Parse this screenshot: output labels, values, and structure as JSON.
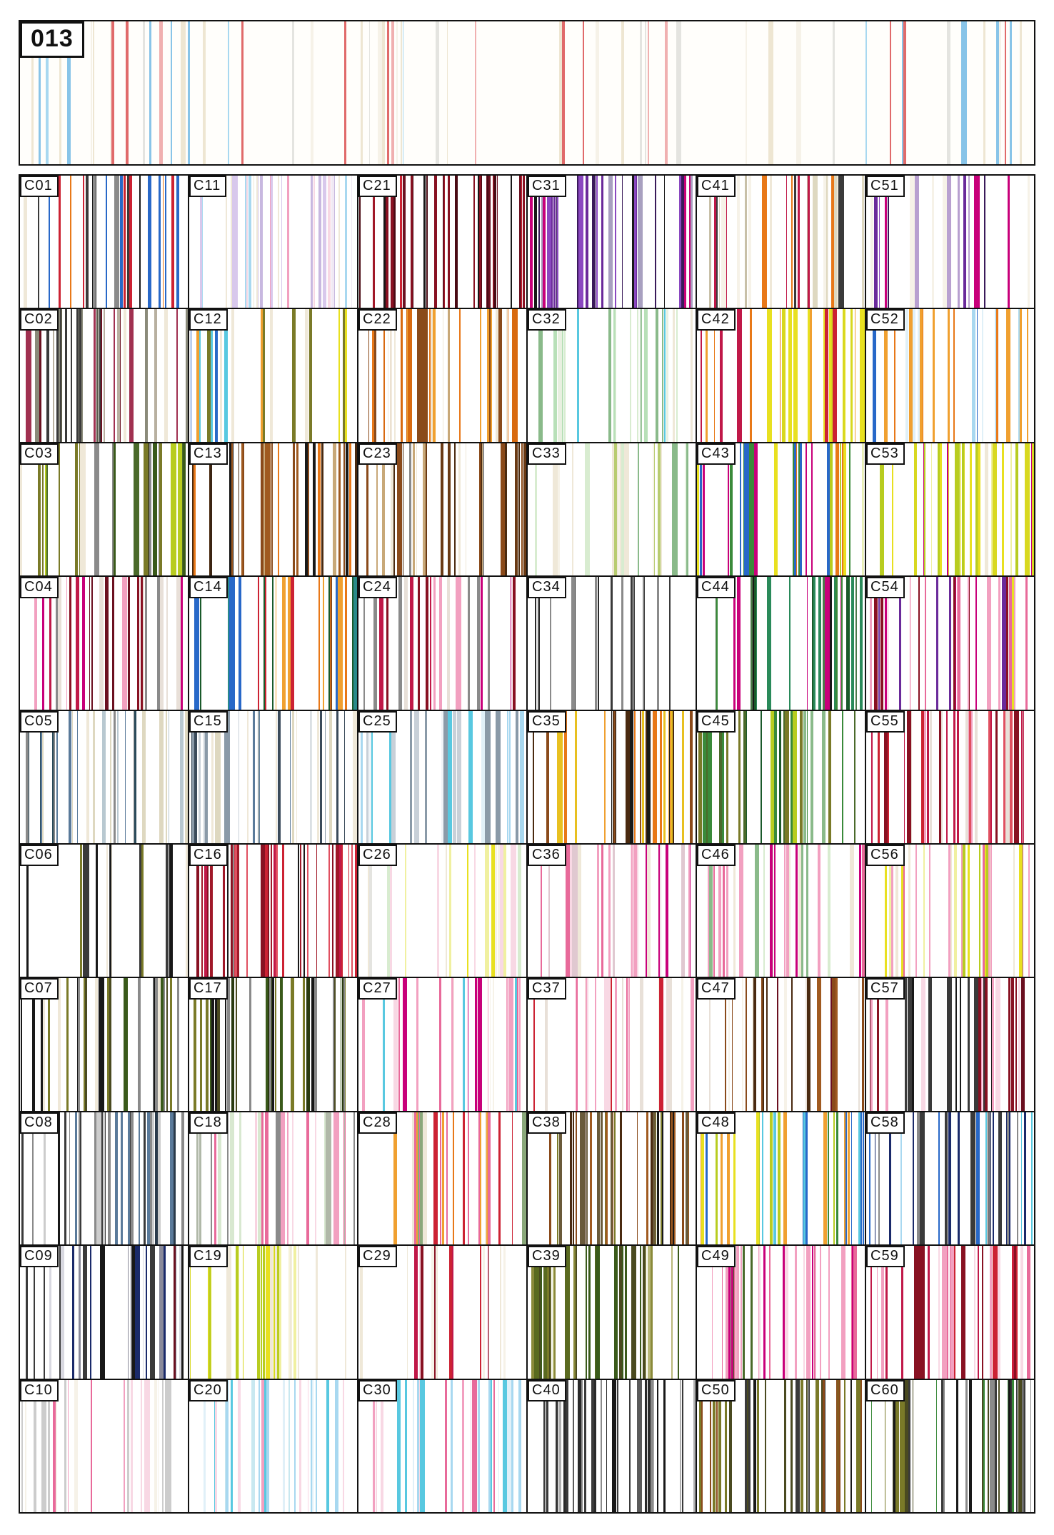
{
  "page": {
    "id_label": "013"
  },
  "header_strip": {
    "seed": 13,
    "count": 64,
    "palette": [
      "#f6f2e8",
      "#eee6d2",
      "#e4e4e0",
      "#f6f2e8",
      "#eee6d2",
      "#f6f2e8",
      "#e06a6a",
      "#f0b0b0",
      "#e06a6a",
      "#88c4e8",
      "#a8d8f0",
      "#e4e4e0",
      "#f0b0b0",
      "#eee6d2",
      "#88c4e8",
      "#e06a6a",
      "#f6f2e8",
      "#eee6d2"
    ]
  },
  "cells": [
    {
      "label": "C01",
      "seed": 201,
      "count": 26,
      "palette": [
        "#e87818",
        "#cc2233",
        "#2868c8",
        "#3a3a3a",
        "#8a8a8a",
        "#efe8d8",
        "#2868c8",
        "#cc2233",
        "#181818"
      ]
    },
    {
      "label": "C02",
      "seed": 202,
      "count": 30,
      "palette": [
        "#5a5a4a",
        "#8a8a7a",
        "#6b1020",
        "#3a3a3a",
        "#b8b0a0",
        "#efe8d8",
        "#a03050"
      ]
    },
    {
      "label": "C03",
      "seed": 203,
      "count": 32,
      "palette": [
        "#7a7a28",
        "#4a6a2a",
        "#b8cc20",
        "#181818",
        "#8a8a8a",
        "#efe8d8",
        "#3a5a1a"
      ]
    },
    {
      "label": "C04",
      "seed": 204,
      "count": 30,
      "palette": [
        "#c01848",
        "#881122",
        "#f2a0c0",
        "#8a8a8a",
        "#6b1020",
        "#e8e0d8",
        "#c8007a"
      ]
    },
    {
      "label": "C05",
      "seed": 205,
      "count": 30,
      "palette": [
        "#5a7a9a",
        "#2a4a5a",
        "#efe8d8",
        "#b8c8d0",
        "#8a8a8a",
        "#ded8c0"
      ]
    },
    {
      "label": "C06",
      "seed": 206,
      "count": 16,
      "palette": [
        "#181818",
        "#3a3a3a",
        "#7a7a28",
        "#efe8d8",
        "#8a8a8a",
        "#f6f2e8"
      ]
    },
    {
      "label": "C07",
      "seed": 207,
      "count": 28,
      "palette": [
        "#3a5a1a",
        "#181818",
        "#7a7a28",
        "#8a8a8a",
        "#efe8d8",
        "#4a4a20"
      ]
    },
    {
      "label": "C08",
      "seed": 208,
      "count": 36,
      "palette": [
        "#181818",
        "#3a3a3a",
        "#5a7a9a",
        "#8a8a8a",
        "#cccccc",
        "#2a3a4a"
      ]
    },
    {
      "label": "C09",
      "seed": 209,
      "count": 32,
      "palette": [
        "#1a2a6a",
        "#181818",
        "#3a3a3a",
        "#6b1020",
        "#8a8a9a",
        "#d8d8e0"
      ]
    },
    {
      "label": "C10",
      "seed": 210,
      "count": 24,
      "palette": [
        "#f2a0c0",
        "#f8d8e4",
        "#cccccc",
        "#c8007a",
        "#f6f2e8",
        "#e86a9a"
      ]
    },
    {
      "label": "C11",
      "seed": 211,
      "count": 30,
      "palette": [
        "#d8c8ec",
        "#f2a0c0",
        "#a8d8f0",
        "#f8d8e4",
        "#efe8d8",
        "#c8b8e0",
        "#f0e8f4"
      ]
    },
    {
      "label": "C12",
      "seed": 212,
      "count": 20,
      "palette": [
        "#e8e020",
        "#2868c8",
        "#58c8e0",
        "#efe8d8",
        "#7a7a28",
        "#f0a030",
        "#a8d8f0"
      ]
    },
    {
      "label": "C13",
      "seed": 213,
      "count": 32,
      "palette": [
        "#8a4a1a",
        "#e87818",
        "#4a2a10",
        "#c8a878",
        "#181818",
        "#a05a20"
      ]
    },
    {
      "label": "C14",
      "seed": 214,
      "count": 30,
      "palette": [
        "#2868c8",
        "#e87818",
        "#cc2233",
        "#2a8a8a",
        "#8a4a1a",
        "#f0a030",
        "#1a5a2a"
      ]
    },
    {
      "label": "C15",
      "seed": 215,
      "count": 30,
      "palette": [
        "#5a7a9a",
        "#8a9aa8",
        "#efe8d8",
        "#3a4a5a",
        "#c8d0d8",
        "#ded8c0"
      ]
    },
    {
      "label": "C16",
      "seed": 216,
      "count": 36,
      "palette": [
        "#cc2233",
        "#881122",
        "#c01848",
        "#181818",
        "#a01828",
        "#e05060"
      ]
    },
    {
      "label": "C17",
      "seed": 217,
      "count": 34,
      "palette": [
        "#3a5a1a",
        "#4a4a20",
        "#181818",
        "#7a7a28",
        "#2a3a10",
        "#8a8a8a"
      ]
    },
    {
      "label": "C18",
      "seed": 218,
      "count": 28,
      "palette": [
        "#f2a0c0",
        "#e86a9a",
        "#8a8a8a",
        "#d8e8d0",
        "#f8d8e4",
        "#b0b8a8"
      ]
    },
    {
      "label": "C19",
      "seed": 219,
      "count": 26,
      "palette": [
        "#e8e020",
        "#b8cc20",
        "#f0f0a0",
        "#efe8d8",
        "#d8d820",
        "#f6f2d8"
      ]
    },
    {
      "label": "C20",
      "seed": 220,
      "count": 26,
      "palette": [
        "#a8d8f0",
        "#58c8e0",
        "#f2a0c0",
        "#e0f0f8",
        "#f8d8e4",
        "#c8e8f0"
      ]
    },
    {
      "label": "C21",
      "seed": 221,
      "count": 34,
      "palette": [
        "#881122",
        "#6b1020",
        "#cc2233",
        "#181818",
        "#a01828",
        "#4a0a14"
      ]
    },
    {
      "label": "C22",
      "seed": 222,
      "count": 28,
      "palette": [
        "#e87818",
        "#f0a030",
        "#8a4a1a",
        "#efe8d8",
        "#d86a10",
        "#c8a878"
      ]
    },
    {
      "label": "C23",
      "seed": 223,
      "count": 30,
      "palette": [
        "#8a4a1a",
        "#c8a878",
        "#4a2a10",
        "#8a8a8a",
        "#efe8d8",
        "#6a3a14"
      ]
    },
    {
      "label": "C24",
      "seed": 224,
      "count": 30,
      "palette": [
        "#c8007a",
        "#c01848",
        "#f2a0c0",
        "#8a8a8a",
        "#881122",
        "#e8e0d8"
      ]
    },
    {
      "label": "C25",
      "seed": 225,
      "count": 24,
      "palette": [
        "#a8d8f0",
        "#58c8e0",
        "#c8d0d8",
        "#e0f0f8",
        "#8a9aa8",
        "#f0f4f8"
      ]
    },
    {
      "label": "C26",
      "seed": 226,
      "count": 20,
      "palette": [
        "#efe8d8",
        "#f0f0a0",
        "#e4e4e0",
        "#f8d8e4",
        "#d8ecd0",
        "#f6f2e8",
        "#e8e020"
      ]
    },
    {
      "label": "C27",
      "seed": 227,
      "count": 22,
      "palette": [
        "#f2a0c0",
        "#c8007a",
        "#f8d8e4",
        "#e86a9a",
        "#f6f2e8",
        "#58c8e0"
      ]
    },
    {
      "label": "C28",
      "seed": 228,
      "count": 28,
      "palette": [
        "#e87818",
        "#cc2233",
        "#e86a9a",
        "#8aa87a",
        "#f0a030",
        "#efe8d8"
      ]
    },
    {
      "label": "C29",
      "seed": 229,
      "count": 18,
      "palette": [
        "#881122",
        "#cc2233",
        "#f8d8e4",
        "#efe8d8",
        "#f6f2e8",
        "#c01848"
      ]
    },
    {
      "label": "C30",
      "seed": 230,
      "count": 26,
      "palette": [
        "#f2a0c0",
        "#58c8e0",
        "#a8d8f0",
        "#f8d8e4",
        "#e0f0f8",
        "#e86a9a"
      ]
    },
    {
      "label": "C31",
      "seed": 231,
      "count": 30,
      "palette": [
        "#6a2a9a",
        "#c8007a",
        "#3a1a5a",
        "#181818",
        "#8a48c0",
        "#a8a0c0"
      ]
    },
    {
      "label": "C32",
      "seed": 232,
      "count": 22,
      "palette": [
        "#d8ecd0",
        "#b8e0b8",
        "#efe8d8",
        "#8aba8a",
        "#e8f0e0",
        "#58c8e0"
      ]
    },
    {
      "label": "C33",
      "seed": 233,
      "count": 22,
      "palette": [
        "#d8ecd0",
        "#b8cc70",
        "#e8f0d0",
        "#8aba8a",
        "#efe8d8",
        "#f6f2e8"
      ]
    },
    {
      "label": "C34",
      "seed": 234,
      "count": 18,
      "palette": [
        "#181818",
        "#3a3a3a",
        "#5a5a5a",
        "#8a8a8a",
        "#2a2a2a"
      ]
    },
    {
      "label": "C35",
      "seed": 235,
      "count": 30,
      "palette": [
        "#e87818",
        "#f0a030",
        "#8a4a1a",
        "#4a2a10",
        "#e8c020",
        "#181818"
      ]
    },
    {
      "label": "C36",
      "seed": 236,
      "count": 28,
      "palette": [
        "#f2a0c0",
        "#e86a9a",
        "#c8007a",
        "#f8d8e4",
        "#efe8d8",
        "#e0c8d0"
      ]
    },
    {
      "label": "C37",
      "seed": 237,
      "count": 24,
      "palette": [
        "#f2a0c0",
        "#cc2233",
        "#f8d8e4",
        "#f6f2e8",
        "#e86a9a",
        "#e8e0d8"
      ]
    },
    {
      "label": "C38",
      "seed": 238,
      "count": 34,
      "palette": [
        "#8a4a1a",
        "#4a2a10",
        "#7a7a28",
        "#181818",
        "#a05a20",
        "#6a5a3a"
      ]
    },
    {
      "label": "C39",
      "seed": 239,
      "count": 34,
      "palette": [
        "#7a7a28",
        "#4a4a20",
        "#3a5a1a",
        "#8a8a3a",
        "#5a6a20",
        "#b8b878"
      ]
    },
    {
      "label": "C40",
      "seed": 240,
      "count": 34,
      "palette": [
        "#3a3a3a",
        "#181818",
        "#8a8a8a",
        "#5a5a5a",
        "#b0b0b0",
        "#2a2a2a"
      ]
    },
    {
      "label": "C41",
      "seed": 241,
      "count": 28,
      "palette": [
        "#efe8d8",
        "#ded8c0",
        "#e87818",
        "#c01848",
        "#3a3a3a",
        "#c8c0a8",
        "#f6f2e8"
      ]
    },
    {
      "label": "C42",
      "seed": 242,
      "count": 32,
      "palette": [
        "#e8e020",
        "#e87818",
        "#cc2233",
        "#c01848",
        "#f0a030",
        "#d8d820"
      ]
    },
    {
      "label": "C43",
      "seed": 243,
      "count": 30,
      "palette": [
        "#c8007a",
        "#e8e020",
        "#2868c8",
        "#3a8a3a",
        "#e87818",
        "#b8cc20"
      ]
    },
    {
      "label": "C44",
      "seed": 244,
      "count": 34,
      "palette": [
        "#1a5a2a",
        "#2a8a5a",
        "#3a8a3a",
        "#c8007a",
        "#181818",
        "#4a7a4a"
      ]
    },
    {
      "label": "C45",
      "seed": 245,
      "count": 32,
      "palette": [
        "#3a8a3a",
        "#7a7a28",
        "#4a6a2a",
        "#b8cc20",
        "#1a5a2a",
        "#8aba8a"
      ]
    },
    {
      "label": "C46",
      "seed": 246,
      "count": 28,
      "palette": [
        "#f2a0c0",
        "#c8007a",
        "#8aba8a",
        "#efe8d8",
        "#e86a9a",
        "#d8ecd0"
      ]
    },
    {
      "label": "C47",
      "seed": 247,
      "count": 24,
      "palette": [
        "#8a4a1a",
        "#6b1020",
        "#4a2a10",
        "#f6f2e8",
        "#a05a20",
        "#e8e0d8"
      ]
    },
    {
      "label": "C48",
      "seed": 248,
      "count": 30,
      "palette": [
        "#e8e020",
        "#2868c8",
        "#58c8e0",
        "#3a8a3a",
        "#b8cc20",
        "#f0a030"
      ]
    },
    {
      "label": "C49",
      "seed": 249,
      "count": 32,
      "palette": [
        "#f2a0c0",
        "#e86a9a",
        "#c8007a",
        "#8aba8a",
        "#f8d8e4",
        "#4a6a2a"
      ]
    },
    {
      "label": "C50",
      "seed": 250,
      "count": 34,
      "palette": [
        "#4a4a20",
        "#8a4a1a",
        "#181818",
        "#7a7a28",
        "#3a3a3a",
        "#5a5a3a"
      ]
    },
    {
      "label": "C51",
      "seed": 251,
      "count": 18,
      "palette": [
        "#6a2a9a",
        "#8a48c0",
        "#c8007a",
        "#3a1a5a",
        "#f6f2e8",
        "#b8a0d0"
      ]
    },
    {
      "label": "C52",
      "seed": 252,
      "count": 26,
      "palette": [
        "#e87818",
        "#2868c8",
        "#cc2233",
        "#a8d8f0",
        "#f0a030",
        "#e0f0f8"
      ]
    },
    {
      "label": "C53",
      "seed": 253,
      "count": 30,
      "palette": [
        "#e8e020",
        "#d8d820",
        "#c8007a",
        "#efe8d8",
        "#f0f0a0",
        "#b8cc20"
      ]
    },
    {
      "label": "C54",
      "seed": 254,
      "count": 30,
      "palette": [
        "#c8007a",
        "#f2a0c0",
        "#6a2a9a",
        "#e8e020",
        "#e86a9a",
        "#881122"
      ]
    },
    {
      "label": "C55",
      "seed": 255,
      "count": 34,
      "palette": [
        "#cc2233",
        "#c01848",
        "#f2a0c0",
        "#881122",
        "#e05060",
        "#e8e0d8"
      ]
    },
    {
      "label": "C56",
      "seed": 256,
      "count": 28,
      "palette": [
        "#e8e020",
        "#b8cc20",
        "#f2a0c0",
        "#efe8d8",
        "#f0f0a0",
        "#e86a9a"
      ]
    },
    {
      "label": "C57",
      "seed": 257,
      "count": 28,
      "palette": [
        "#181818",
        "#6b1020",
        "#881122",
        "#f8d8e4",
        "#3a3a3a",
        "#f2a0c0"
      ]
    },
    {
      "label": "C58",
      "seed": 258,
      "count": 30,
      "palette": [
        "#2868c8",
        "#1a2a6a",
        "#58c8e0",
        "#8a8a8a",
        "#a8d8f0",
        "#3a3a3a"
      ]
    },
    {
      "label": "C59",
      "seed": 259,
      "count": 34,
      "palette": [
        "#c01848",
        "#cc2233",
        "#f2a0c0",
        "#e86a9a",
        "#881122",
        "#f8d8e4"
      ]
    },
    {
      "label": "C60",
      "seed": 260,
      "count": 34,
      "palette": [
        "#3a3a3a",
        "#7a7a28",
        "#181818",
        "#3a8a3a",
        "#4a4a20",
        "#8a8a8a"
      ]
    }
  ]
}
